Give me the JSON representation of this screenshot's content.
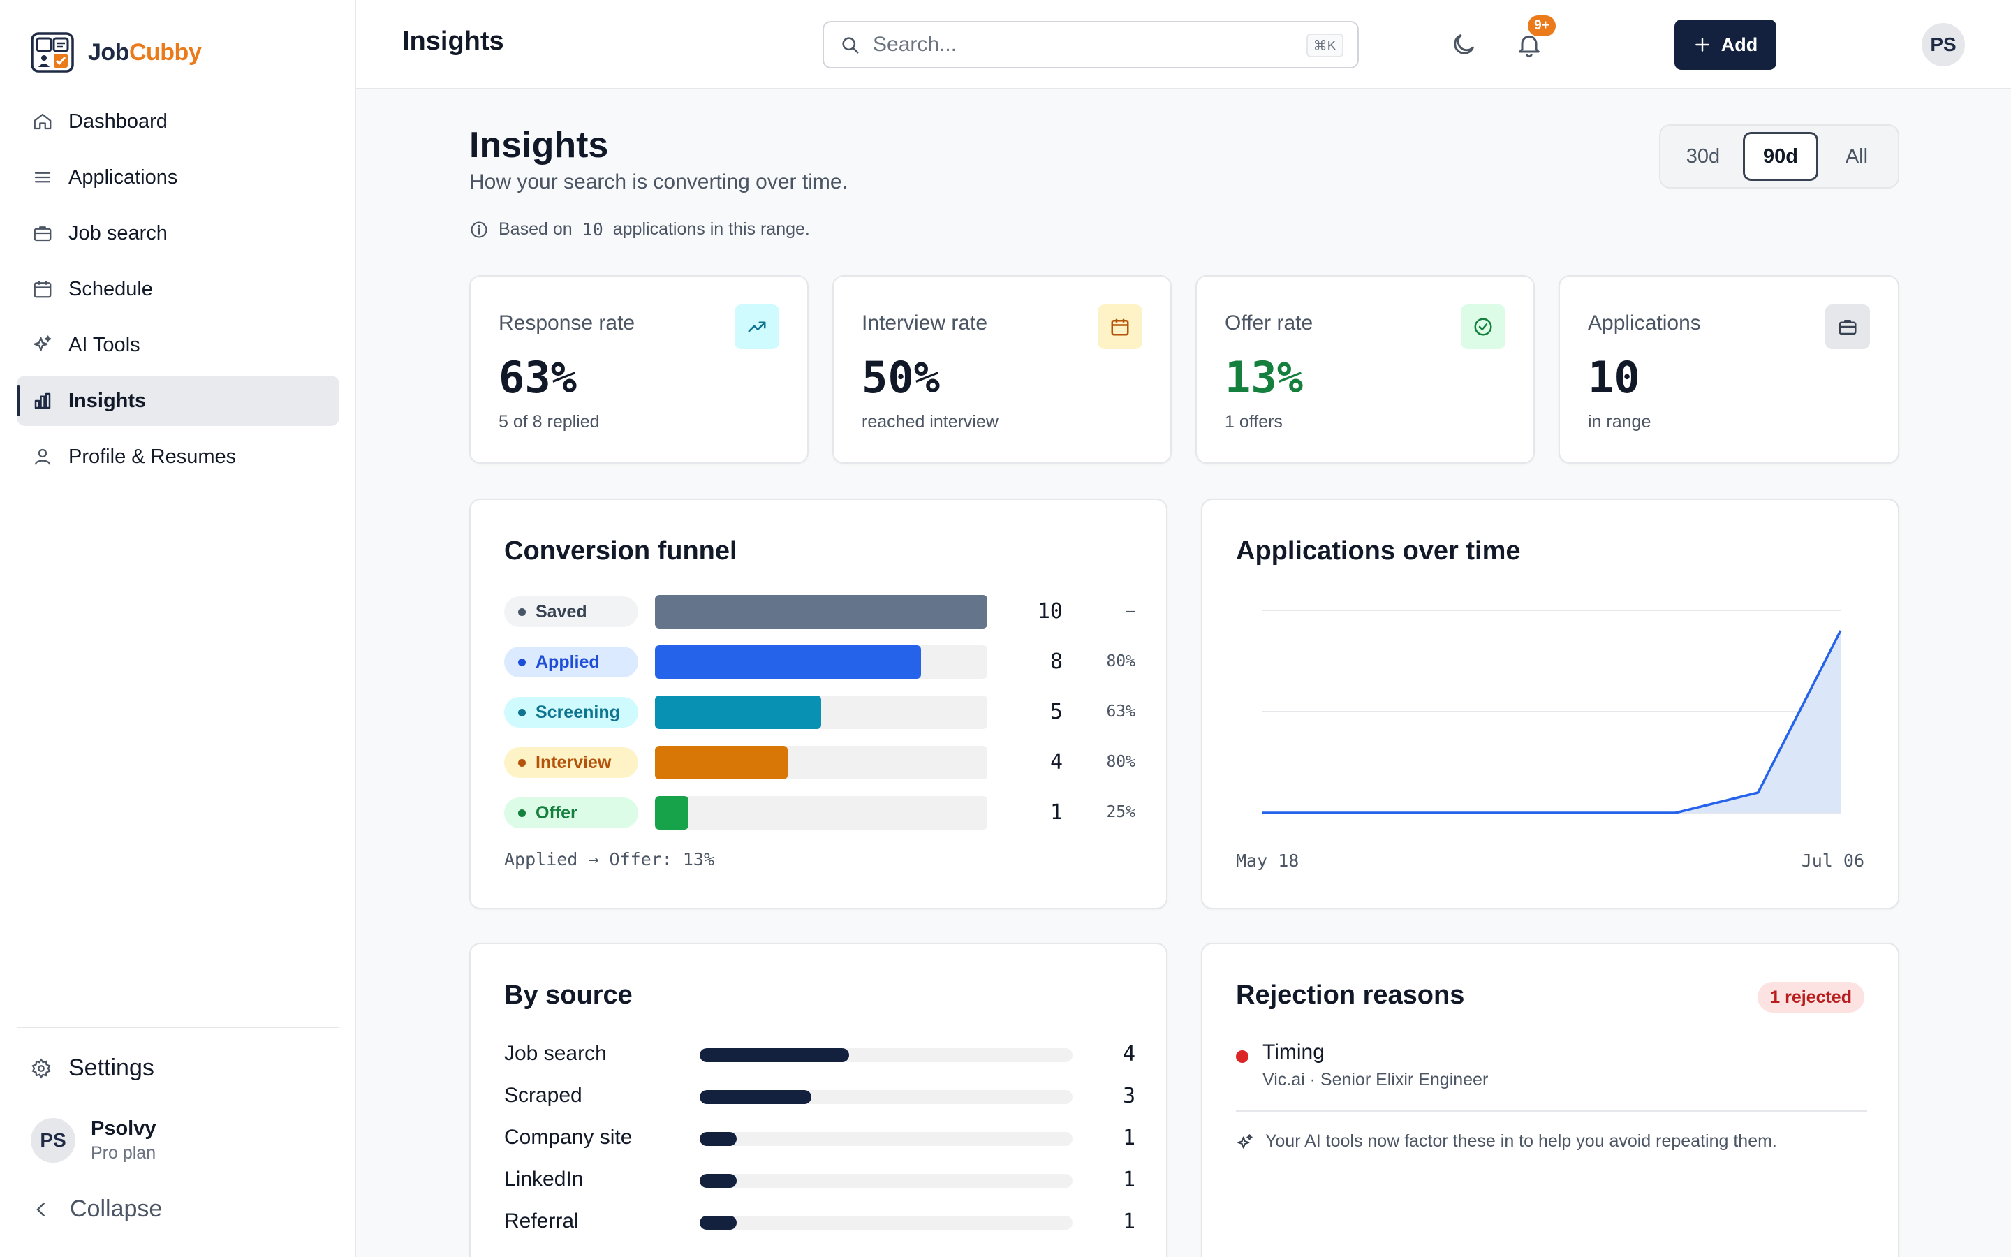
{
  "app": {
    "name_part1": "Job",
    "name_part2": "Cubby",
    "accent_color": "#ea7a1a",
    "primary_color": "#13213f"
  },
  "sidebar": {
    "items": [
      {
        "label": "Dashboard",
        "icon": "home-icon"
      },
      {
        "label": "Applications",
        "icon": "list-icon"
      },
      {
        "label": "Job search",
        "icon": "briefcase-icon"
      },
      {
        "label": "Schedule",
        "icon": "calendar-icon"
      },
      {
        "label": "AI Tools",
        "icon": "sparkles-icon"
      },
      {
        "label": "Insights",
        "icon": "bar-chart-icon",
        "active": true
      },
      {
        "label": "Profile & Resumes",
        "icon": "user-icon"
      }
    ],
    "settings_label": "Settings",
    "user": {
      "initials": "PS",
      "name": "Psolvy",
      "plan": "Pro plan"
    },
    "collapse_label": "Collapse"
  },
  "topbar": {
    "title": "Insights",
    "search_placeholder": "Search...",
    "search_shortcut": "⌘K",
    "add_label": "Add",
    "notification_badge": "9+",
    "avatar_initials": "PS"
  },
  "page": {
    "title": "Insights",
    "subtitle": "How your search is converting over time.",
    "info_prefix": "Based on",
    "info_count": "10",
    "info_suffix": "applications in this range.",
    "ranges": [
      "30d",
      "90d",
      "All"
    ],
    "selected_range": "90d"
  },
  "stats": [
    {
      "label": "Response rate",
      "value": "63%",
      "sub": "5 of 8 replied",
      "icon": "trending-up-icon",
      "icon_bg": "#cffafe",
      "icon_color": "#0e7490",
      "value_color": "#111827"
    },
    {
      "label": "Interview rate",
      "value": "50%",
      "sub": "reached interview",
      "icon": "calendar-icon",
      "icon_bg": "#fef3c7",
      "icon_color": "#b45309",
      "value_color": "#111827"
    },
    {
      "label": "Offer rate",
      "value": "13%",
      "sub": "1 offers",
      "icon": "check-circle-icon",
      "icon_bg": "#dcfce7",
      "icon_color": "#15803d",
      "value_color": "#15803d"
    },
    {
      "label": "Applications",
      "value": "10",
      "sub": "in range",
      "icon": "briefcase-icon",
      "icon_bg": "#e5e7eb",
      "icon_color": "#374151",
      "value_color": "#111827"
    }
  ],
  "funnel": {
    "title": "Conversion funnel",
    "max": 10,
    "stages": [
      {
        "label": "Saved",
        "count": "10",
        "value": 10,
        "pct": "—",
        "bar_color": "#64748b",
        "pill_bg": "#f1f3f5",
        "pill_color": "#374151",
        "dot_color": "#475569"
      },
      {
        "label": "Applied",
        "count": "8",
        "value": 8,
        "pct": "80%",
        "bar_color": "#2563eb",
        "pill_bg": "#dbeafe",
        "pill_color": "#1d4ed8",
        "dot_color": "#1d4ed8"
      },
      {
        "label": "Screening",
        "count": "5",
        "value": 5,
        "pct": "63%",
        "bar_color": "#0891b2",
        "pill_bg": "#cffafe",
        "pill_color": "#0e7490",
        "dot_color": "#0e7490"
      },
      {
        "label": "Interview",
        "count": "4",
        "value": 4,
        "pct": "80%",
        "bar_color": "#d97706",
        "pill_bg": "#fef3c7",
        "pill_color": "#b45309",
        "dot_color": "#b45309"
      },
      {
        "label": "Offer",
        "count": "1",
        "value": 1,
        "pct": "25%",
        "bar_color": "#16a34a",
        "pill_bg": "#dcfce7",
        "pill_color": "#15803d",
        "dot_color": "#15803d"
      }
    ],
    "footer": "Applied → Offer: 13%"
  },
  "chart_data": {
    "type": "area",
    "title": "Applications over time",
    "x_start_label": "May 18",
    "x_end_label": "Jul 06",
    "values": [
      0,
      0,
      0,
      0,
      0,
      0,
      1,
      9
    ],
    "ylim": [
      0,
      10
    ],
    "grid": true,
    "line_color": "#2563eb",
    "fill_color": "#dbe6f9"
  },
  "sources": {
    "title": "By source",
    "max": 10,
    "items": [
      {
        "label": "Job search",
        "count": "4",
        "value": 4
      },
      {
        "label": "Scraped",
        "count": "3",
        "value": 3
      },
      {
        "label": "Company site",
        "count": "1",
        "value": 1
      },
      {
        "label": "LinkedIn",
        "count": "1",
        "value": 1
      },
      {
        "label": "Referral",
        "count": "1",
        "value": 1
      }
    ]
  },
  "rejections": {
    "title": "Rejection reasons",
    "badge": "1 rejected",
    "reason": "Timing",
    "company": "Vic.ai · Senior Elixir Engineer",
    "note": "Your AI tools now factor these in to help you avoid repeating them."
  }
}
